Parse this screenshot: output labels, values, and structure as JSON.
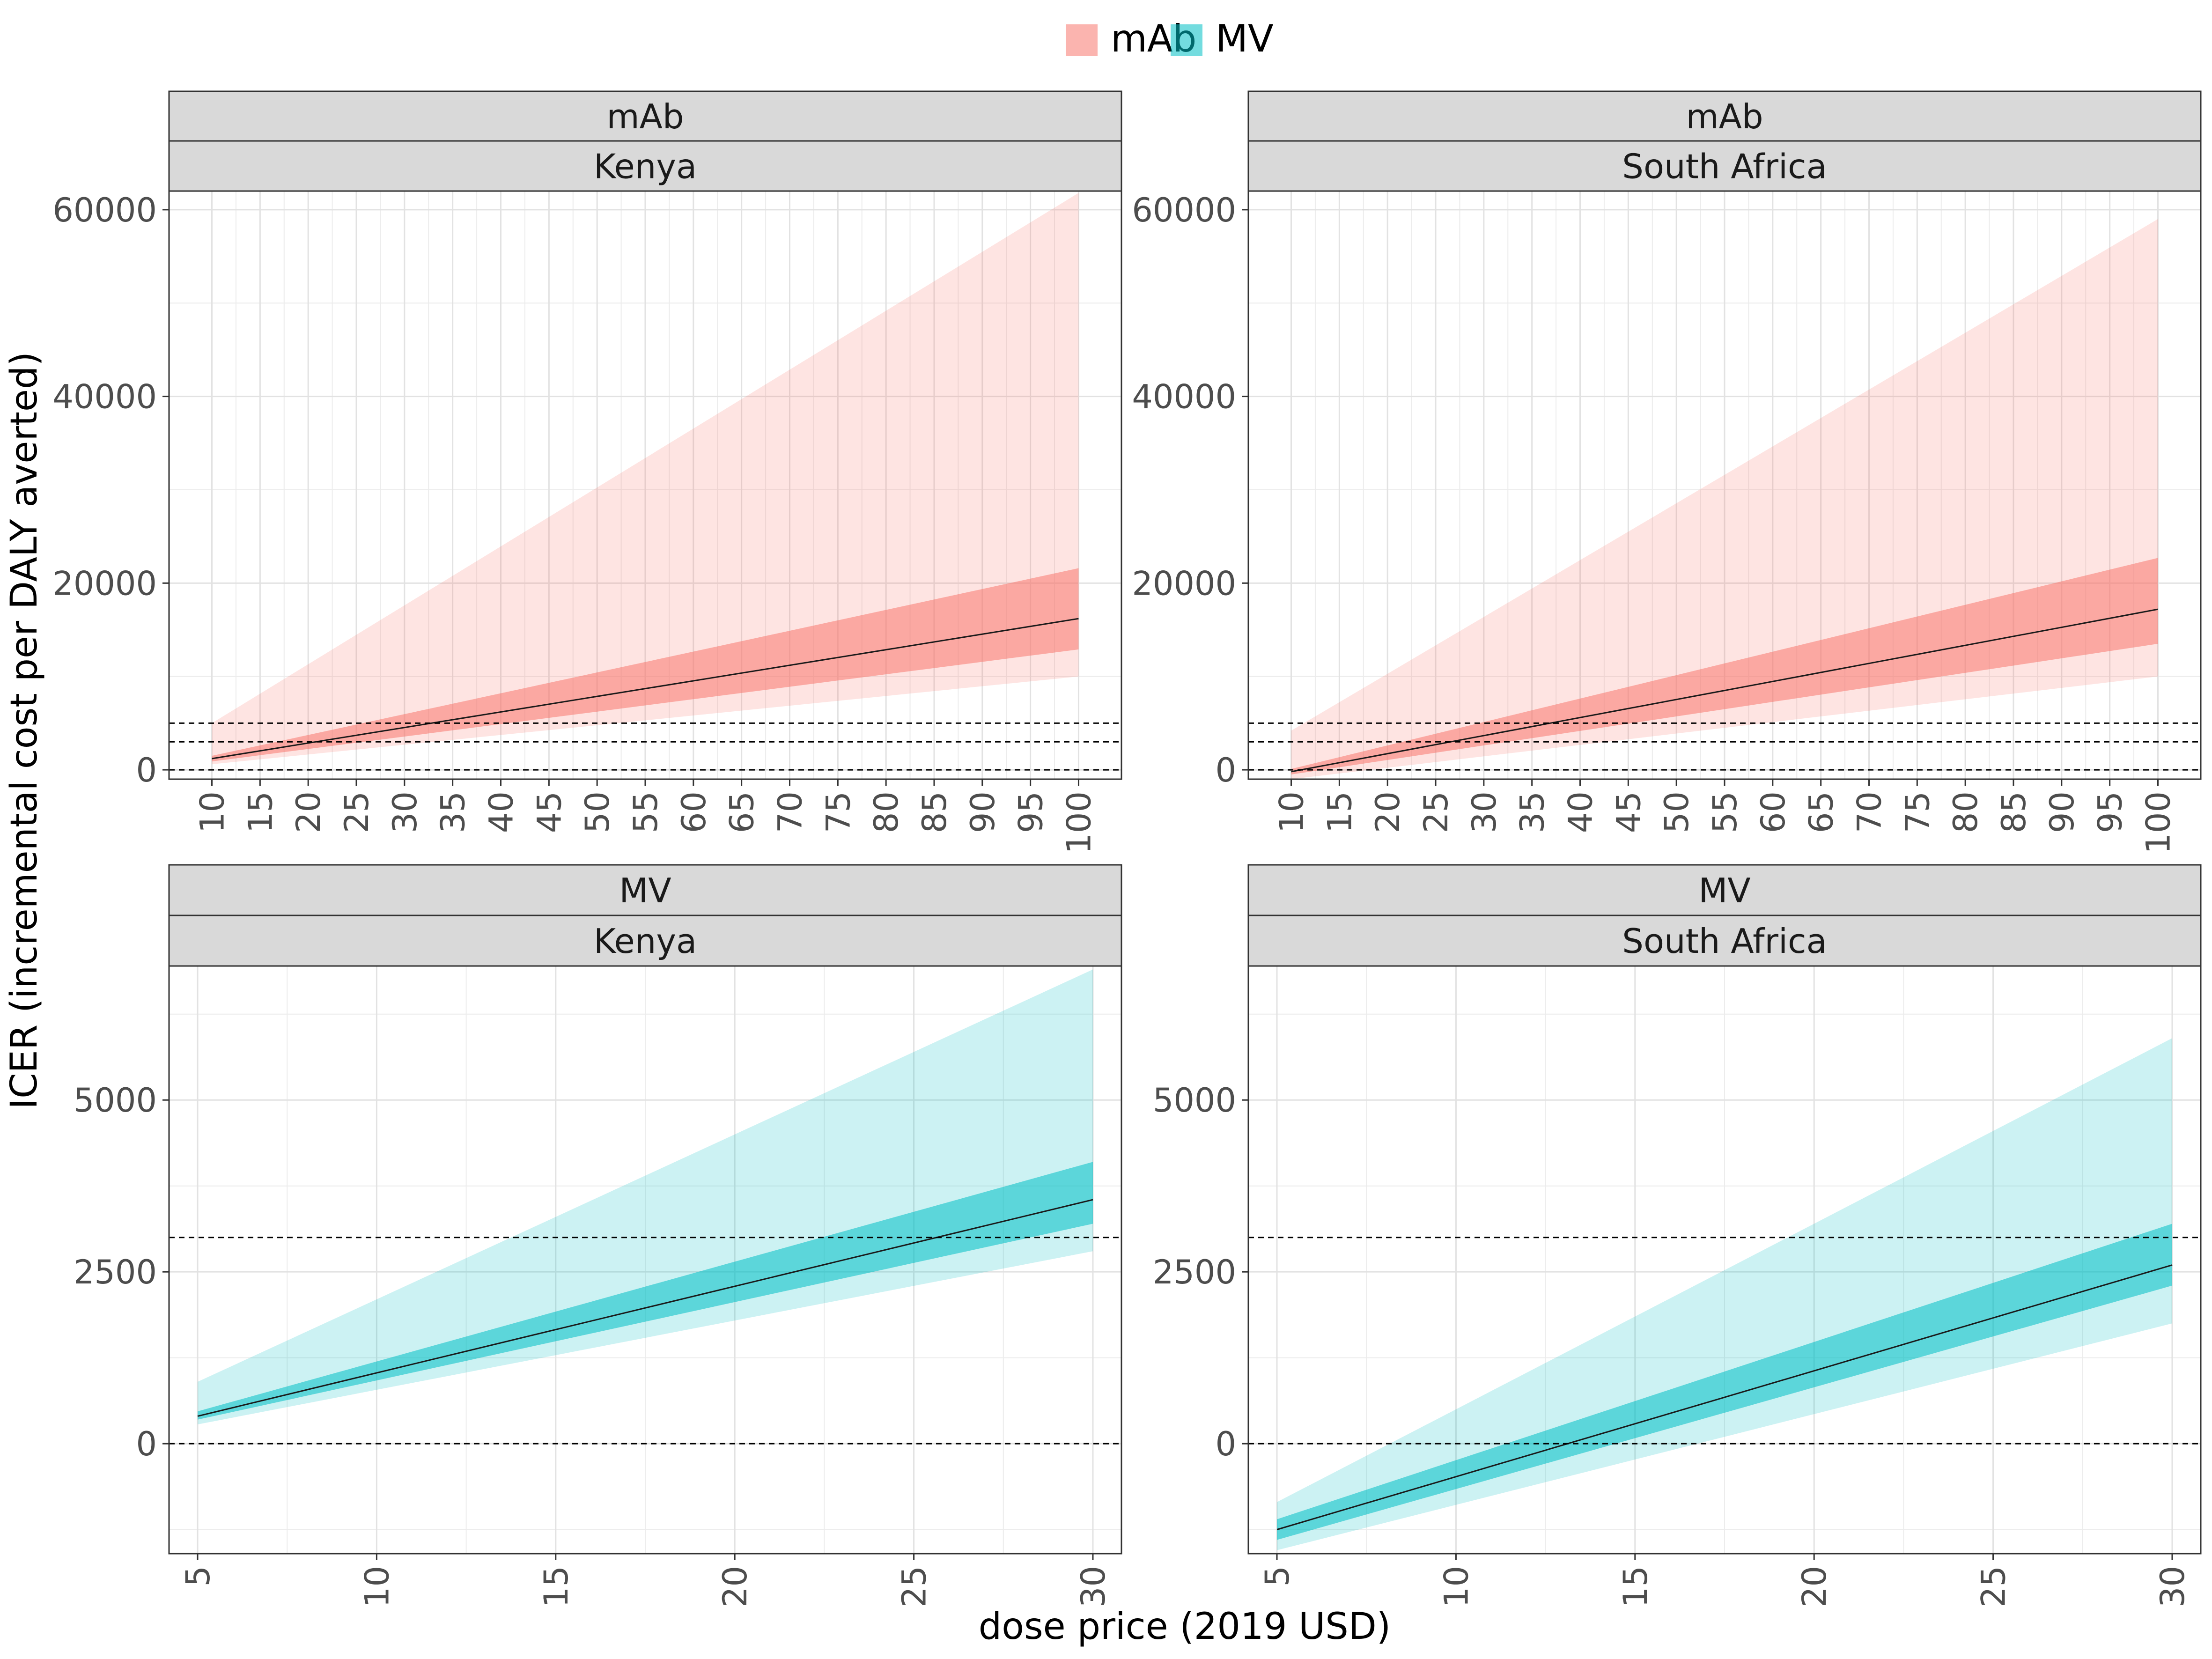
{
  "figure": {
    "ylabel": "ICER (incremental cost per DALY averted)",
    "xlabel": "dose price (2019 USD)",
    "legend": [
      {
        "name": "mAb",
        "color": "#F8766D"
      },
      {
        "name": "MV",
        "color": "#00BFC4"
      }
    ],
    "threshold_lines": [
      0,
      3000,
      5000
    ]
  },
  "chart_data": [
    {
      "type": "line",
      "strip_top": "mAb",
      "strip_bottom": "Kenya",
      "color": "#F8766D",
      "xlim": [
        10,
        100
      ],
      "ylim": [
        -1000,
        62000
      ],
      "x_ticks": [
        10,
        15,
        20,
        25,
        30,
        35,
        40,
        45,
        50,
        55,
        60,
        65,
        70,
        75,
        80,
        85,
        90,
        95,
        100
      ],
      "y_ticks": [
        0,
        20000,
        40000,
        60000
      ],
      "x": [
        10,
        100
      ],
      "median": [
        1200,
        16200
      ],
      "inner": {
        "low": [
          900,
          12900
        ],
        "high": [
          1500,
          21600
        ]
      },
      "outer": {
        "low": [
          600,
          10000
        ],
        "high": [
          5000,
          61800
        ]
      },
      "hlines": [
        0,
        3000,
        5000
      ]
    },
    {
      "type": "line",
      "strip_top": "mAb",
      "strip_bottom": "South Africa",
      "color": "#F8766D",
      "xlim": [
        10,
        100
      ],
      "ylim": [
        -1000,
        62000
      ],
      "x_ticks": [
        10,
        15,
        20,
        25,
        30,
        35,
        40,
        45,
        50,
        55,
        60,
        65,
        70,
        75,
        80,
        85,
        90,
        95,
        100
      ],
      "y_ticks": [
        0,
        20000,
        40000,
        60000
      ],
      "x": [
        10,
        100
      ],
      "median": [
        -200,
        17200
      ],
      "inner": {
        "low": [
          -500,
          13500
        ],
        "high": [
          100,
          22700
        ]
      },
      "outer": {
        "low": [
          -1000,
          10000
        ],
        "high": [
          4200,
          59000
        ]
      },
      "hlines": [
        0,
        3000,
        5000
      ]
    },
    {
      "type": "line",
      "strip_top": "MV",
      "strip_bottom": "Kenya",
      "color": "#00BFC4",
      "xlim": [
        5,
        30
      ],
      "ylim": [
        -1600,
        6950
      ],
      "x_ticks": [
        5,
        10,
        15,
        20,
        25,
        30
      ],
      "y_ticks": [
        0,
        2500,
        5000
      ],
      "x": [
        5,
        30
      ],
      "median": [
        400,
        3550
      ],
      "inner": {
        "low": [
          350,
          3200
        ],
        "high": [
          470,
          4100
        ]
      },
      "outer": {
        "low": [
          280,
          2800
        ],
        "high": [
          900,
          6900
        ]
      },
      "hlines": [
        0,
        3000
      ]
    },
    {
      "type": "line",
      "strip_top": "MV",
      "strip_bottom": "South Africa",
      "color": "#00BFC4",
      "xlim": [
        5,
        30
      ],
      "ylim": [
        -1600,
        6950
      ],
      "x_ticks": [
        5,
        10,
        15,
        20,
        25,
        30
      ],
      "y_ticks": [
        0,
        2500,
        5000
      ],
      "x": [
        5,
        30
      ],
      "median": [
        -1250,
        2600
      ],
      "inner": {
        "low": [
          -1400,
          2300
        ],
        "high": [
          -1100,
          3200
        ]
      },
      "outer": {
        "low": [
          -1550,
          1750
        ],
        "high": [
          -850,
          5900
        ]
      },
      "hlines": [
        0,
        3000
      ]
    }
  ]
}
